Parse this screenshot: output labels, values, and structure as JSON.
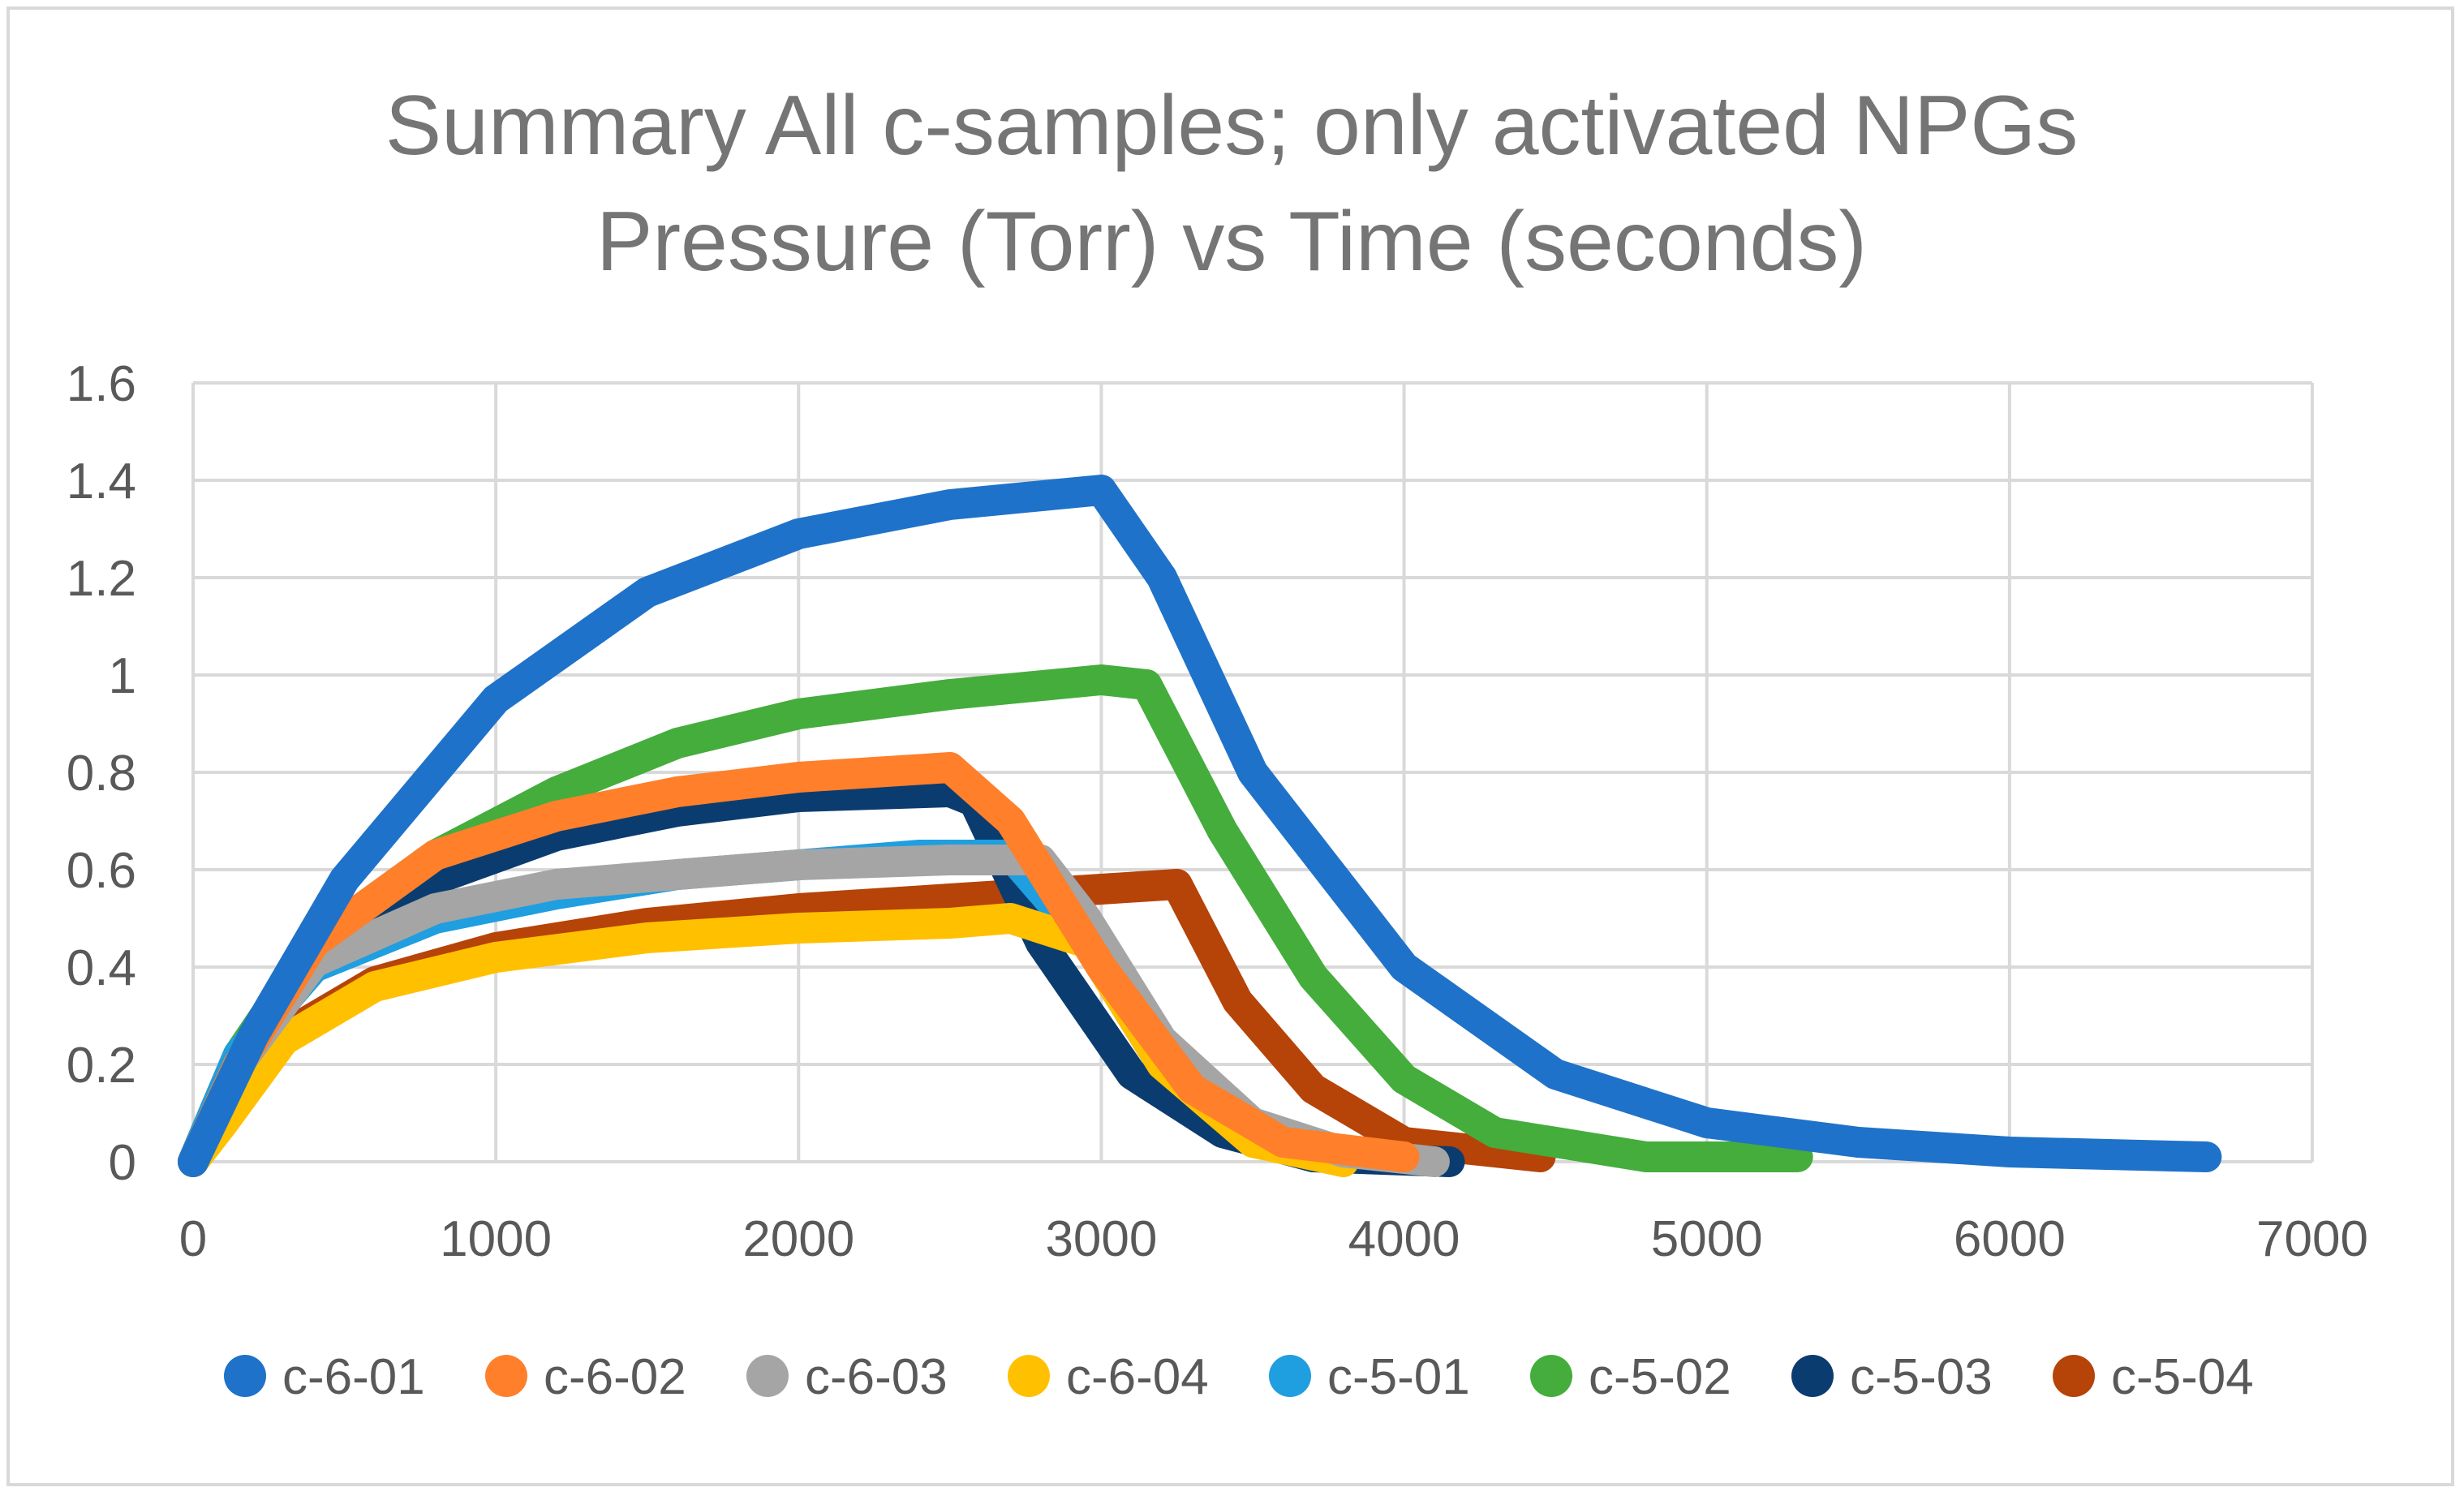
{
  "chart_data": {
    "type": "line",
    "title": [
      "Summary All c-samples; only activated NPGs",
      "Pressure (Torr) vs Time (seconds)"
    ],
    "xlabel": "",
    "ylabel": "",
    "xlim": [
      0,
      7000
    ],
    "ylim": [
      0,
      1.6
    ],
    "x_ticks": [
      0,
      1000,
      2000,
      3000,
      4000,
      5000,
      6000,
      7000
    ],
    "y_ticks": [
      0,
      0.2,
      0.4,
      0.6,
      0.8,
      1,
      1.2,
      1.4,
      1.6
    ],
    "x_tick_labels": [
      "0",
      "1000",
      "2000",
      "3000",
      "4000",
      "5000",
      "6000",
      "7000"
    ],
    "y_tick_labels": [
      "0",
      "0.2",
      "0.4",
      "0.6",
      "0.8",
      "1",
      "1.2",
      "1.4",
      "1.6"
    ],
    "grid": true,
    "legend_position": "bottom",
    "series": [
      {
        "name": "c-6-01",
        "color": "#1f72c9",
        "points": [
          [
            0,
            0
          ],
          [
            200,
            0.26
          ],
          [
            500,
            0.58
          ],
          [
            1000,
            0.95
          ],
          [
            1500,
            1.17
          ],
          [
            2000,
            1.29
          ],
          [
            2500,
            1.35
          ],
          [
            3000,
            1.38
          ],
          [
            3200,
            1.2
          ],
          [
            3500,
            0.8
          ],
          [
            4000,
            0.4
          ],
          [
            4500,
            0.18
          ],
          [
            5000,
            0.08
          ],
          [
            5500,
            0.04
          ],
          [
            6000,
            0.02
          ],
          [
            6650,
            0.01
          ]
        ]
      },
      {
        "name": "c-6-02",
        "color": "#ff7f2a",
        "points": [
          [
            0,
            0
          ],
          [
            150,
            0.2
          ],
          [
            400,
            0.45
          ],
          [
            800,
            0.63
          ],
          [
            1200,
            0.71
          ],
          [
            1600,
            0.76
          ],
          [
            2000,
            0.79
          ],
          [
            2500,
            0.81
          ],
          [
            2700,
            0.7
          ],
          [
            3000,
            0.4
          ],
          [
            3300,
            0.15
          ],
          [
            3600,
            0.04
          ],
          [
            4000,
            0.01
          ]
        ]
      },
      {
        "name": "c-6-03",
        "color": "#a5a5a5",
        "points": [
          [
            0,
            0
          ],
          [
            150,
            0.2
          ],
          [
            400,
            0.41
          ],
          [
            800,
            0.52
          ],
          [
            1200,
            0.57
          ],
          [
            1600,
            0.59
          ],
          [
            2000,
            0.61
          ],
          [
            2500,
            0.62
          ],
          [
            2800,
            0.62
          ],
          [
            2950,
            0.5
          ],
          [
            3200,
            0.25
          ],
          [
            3500,
            0.08
          ],
          [
            3800,
            0.02
          ],
          [
            4100,
            0
          ]
        ]
      },
      {
        "name": "c-6-04",
        "color": "#ffc000",
        "points": [
          [
            0,
            0
          ],
          [
            100,
            0.08
          ],
          [
            300,
            0.25
          ],
          [
            600,
            0.36
          ],
          [
            1000,
            0.42
          ],
          [
            1500,
            0.46
          ],
          [
            2000,
            0.48
          ],
          [
            2500,
            0.49
          ],
          [
            2700,
            0.5
          ],
          [
            2950,
            0.45
          ],
          [
            3200,
            0.2
          ],
          [
            3500,
            0.04
          ],
          [
            3800,
            0
          ]
        ]
      },
      {
        "name": "c-5-01",
        "color": "#1f9ee0",
        "points": [
          [
            0,
            0
          ],
          [
            150,
            0.22
          ],
          [
            400,
            0.4
          ],
          [
            800,
            0.5
          ],
          [
            1200,
            0.55
          ],
          [
            1600,
            0.59
          ],
          [
            2000,
            0.61
          ],
          [
            2400,
            0.63
          ],
          [
            2700,
            0.63
          ],
          [
            2950,
            0.45
          ],
          [
            3200,
            0.2
          ],
          [
            3500,
            0.05
          ],
          [
            3800,
            0.01
          ]
        ]
      },
      {
        "name": "c-5-02",
        "color": "#44ad3c",
        "points": [
          [
            0,
            0
          ],
          [
            150,
            0.22
          ],
          [
            400,
            0.45
          ],
          [
            800,
            0.63
          ],
          [
            1200,
            0.76
          ],
          [
            1600,
            0.86
          ],
          [
            2000,
            0.92
          ],
          [
            2500,
            0.96
          ],
          [
            3000,
            0.99
          ],
          [
            3150,
            0.98
          ],
          [
            3400,
            0.68
          ],
          [
            3700,
            0.38
          ],
          [
            4000,
            0.17
          ],
          [
            4300,
            0.06
          ],
          [
            4800,
            0.01
          ],
          [
            5300,
            0.01
          ]
        ]
      },
      {
        "name": "c-5-03",
        "color": "#0b3c70",
        "points": [
          [
            0,
            0
          ],
          [
            150,
            0.22
          ],
          [
            400,
            0.43
          ],
          [
            800,
            0.58
          ],
          [
            1200,
            0.67
          ],
          [
            1600,
            0.72
          ],
          [
            2000,
            0.75
          ],
          [
            2500,
            0.76
          ],
          [
            2580,
            0.74
          ],
          [
            2800,
            0.45
          ],
          [
            3100,
            0.18
          ],
          [
            3400,
            0.06
          ],
          [
            3700,
            0.01
          ],
          [
            4150,
            0
          ]
        ]
      },
      {
        "name": "c-5-04",
        "color": "#b64308",
        "points": [
          [
            0,
            0
          ],
          [
            100,
            0.1
          ],
          [
            300,
            0.26
          ],
          [
            600,
            0.37
          ],
          [
            1000,
            0.44
          ],
          [
            1500,
            0.49
          ],
          [
            2000,
            0.52
          ],
          [
            2500,
            0.54
          ],
          [
            3000,
            0.56
          ],
          [
            3250,
            0.57
          ],
          [
            3450,
            0.33
          ],
          [
            3700,
            0.15
          ],
          [
            4000,
            0.04
          ],
          [
            4450,
            0.01
          ]
        ]
      }
    ]
  }
}
